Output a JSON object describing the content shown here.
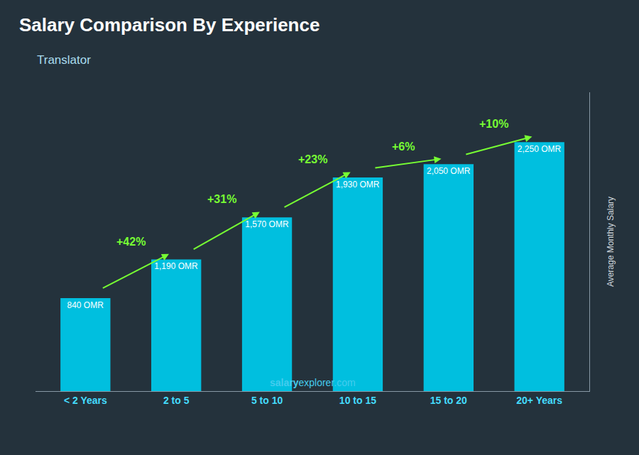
{
  "chart_data": {
    "type": "bar",
    "title": "Salary Comparison By Experience",
    "subtitle": "Translator",
    "categories": [
      "< 2 Years",
      "2 to 5",
      "5 to 10",
      "10 to 15",
      "15 to 20",
      "20+ Years"
    ],
    "values": [
      840,
      1190,
      1570,
      1930,
      2050,
      2250
    ],
    "value_labels": [
      "840 OMR",
      "1,190 OMR",
      "1,570 OMR",
      "1,930 OMR",
      "2,050 OMR",
      "2,250 OMR"
    ],
    "data_labels": true,
    "color": "#00bfdf",
    "annotations": [
      {
        "text": "+42%",
        "color": "#77ff33"
      },
      {
        "text": "+31%",
        "color": "#77ff33"
      },
      {
        "text": "+23%",
        "color": "#77ff33"
      },
      {
        "text": "+6%",
        "color": "#77ff33"
      },
      {
        "text": "+10%",
        "color": "#77ff33"
      }
    ],
    "ylabel": "Average Monthly Salary",
    "ylim": [
      0,
      2700
    ],
    "tick_labels": "x",
    "grid": false,
    "watermark": [
      "salary",
      "explorer.com"
    ]
  }
}
